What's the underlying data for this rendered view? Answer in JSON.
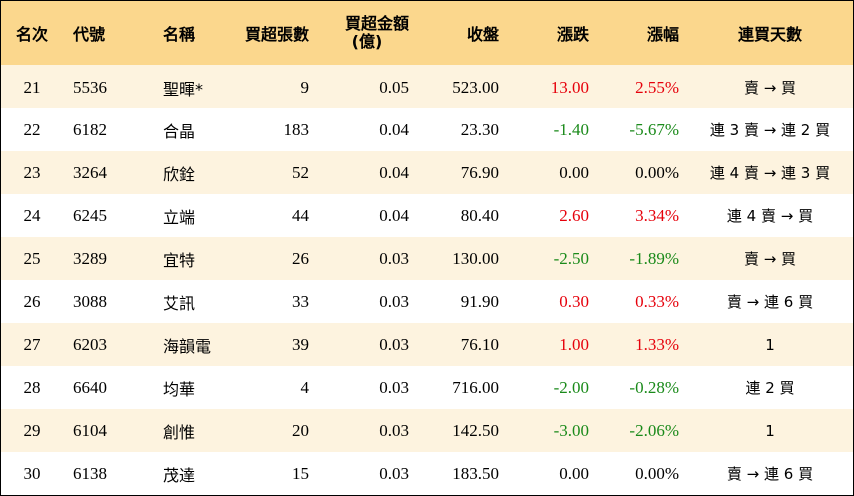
{
  "headers": {
    "rank": "名次",
    "code": "代號",
    "name": "名稱",
    "net_buy_lots": "買超張數",
    "net_buy_amount_line1": "買超金額",
    "net_buy_amount_line2": "(億)",
    "close": "收盤",
    "change": "漲跌",
    "change_pct": "漲幅",
    "consecutive_days": "連買天數"
  },
  "colors": {
    "header_bg": "#fbd78d",
    "stripe_bg": "#fdf3df",
    "up": "#e6000b",
    "down": "#1a8a1a"
  },
  "rows": [
    {
      "rank": "21",
      "code": "5536",
      "name": "聖暉*",
      "lots": "9",
      "amount": "0.05",
      "close": "523.00",
      "change": "13.00",
      "pct": "2.55%",
      "dir": "up",
      "days": "賣 → 買"
    },
    {
      "rank": "22",
      "code": "6182",
      "name": "合晶",
      "lots": "183",
      "amount": "0.04",
      "close": "23.30",
      "change": "-1.40",
      "pct": "-5.67%",
      "dir": "down",
      "days": "連 3 賣 → 連 2 買"
    },
    {
      "rank": "23",
      "code": "3264",
      "name": "欣銓",
      "lots": "52",
      "amount": "0.04",
      "close": "76.90",
      "change": "0.00",
      "pct": "0.00%",
      "dir": "flat",
      "days": "連 4 賣 → 連 3 買"
    },
    {
      "rank": "24",
      "code": "6245",
      "name": "立端",
      "lots": "44",
      "amount": "0.04",
      "close": "80.40",
      "change": "2.60",
      "pct": "3.34%",
      "dir": "up",
      "days": "連 4 賣 → 買"
    },
    {
      "rank": "25",
      "code": "3289",
      "name": "宜特",
      "lots": "26",
      "amount": "0.03",
      "close": "130.00",
      "change": "-2.50",
      "pct": "-1.89%",
      "dir": "down",
      "days": "賣 → 買"
    },
    {
      "rank": "26",
      "code": "3088",
      "name": "艾訊",
      "lots": "33",
      "amount": "0.03",
      "close": "91.90",
      "change": "0.30",
      "pct": "0.33%",
      "dir": "up",
      "days": "賣 → 連 6 買"
    },
    {
      "rank": "27",
      "code": "6203",
      "name": "海韻電",
      "lots": "39",
      "amount": "0.03",
      "close": "76.10",
      "change": "1.00",
      "pct": "1.33%",
      "dir": "up",
      "days": "1"
    },
    {
      "rank": "28",
      "code": "6640",
      "name": "均華",
      "lots": "4",
      "amount": "0.03",
      "close": "716.00",
      "change": "-2.00",
      "pct": "-0.28%",
      "dir": "down",
      "days": "連 2 買"
    },
    {
      "rank": "29",
      "code": "6104",
      "name": "創惟",
      "lots": "20",
      "amount": "0.03",
      "close": "142.50",
      "change": "-3.00",
      "pct": "-2.06%",
      "dir": "down",
      "days": "1"
    },
    {
      "rank": "30",
      "code": "6138",
      "name": "茂達",
      "lots": "15",
      "amount": "0.03",
      "close": "183.50",
      "change": "0.00",
      "pct": "0.00%",
      "dir": "flat",
      "days": "賣 → 連 6 買"
    }
  ]
}
